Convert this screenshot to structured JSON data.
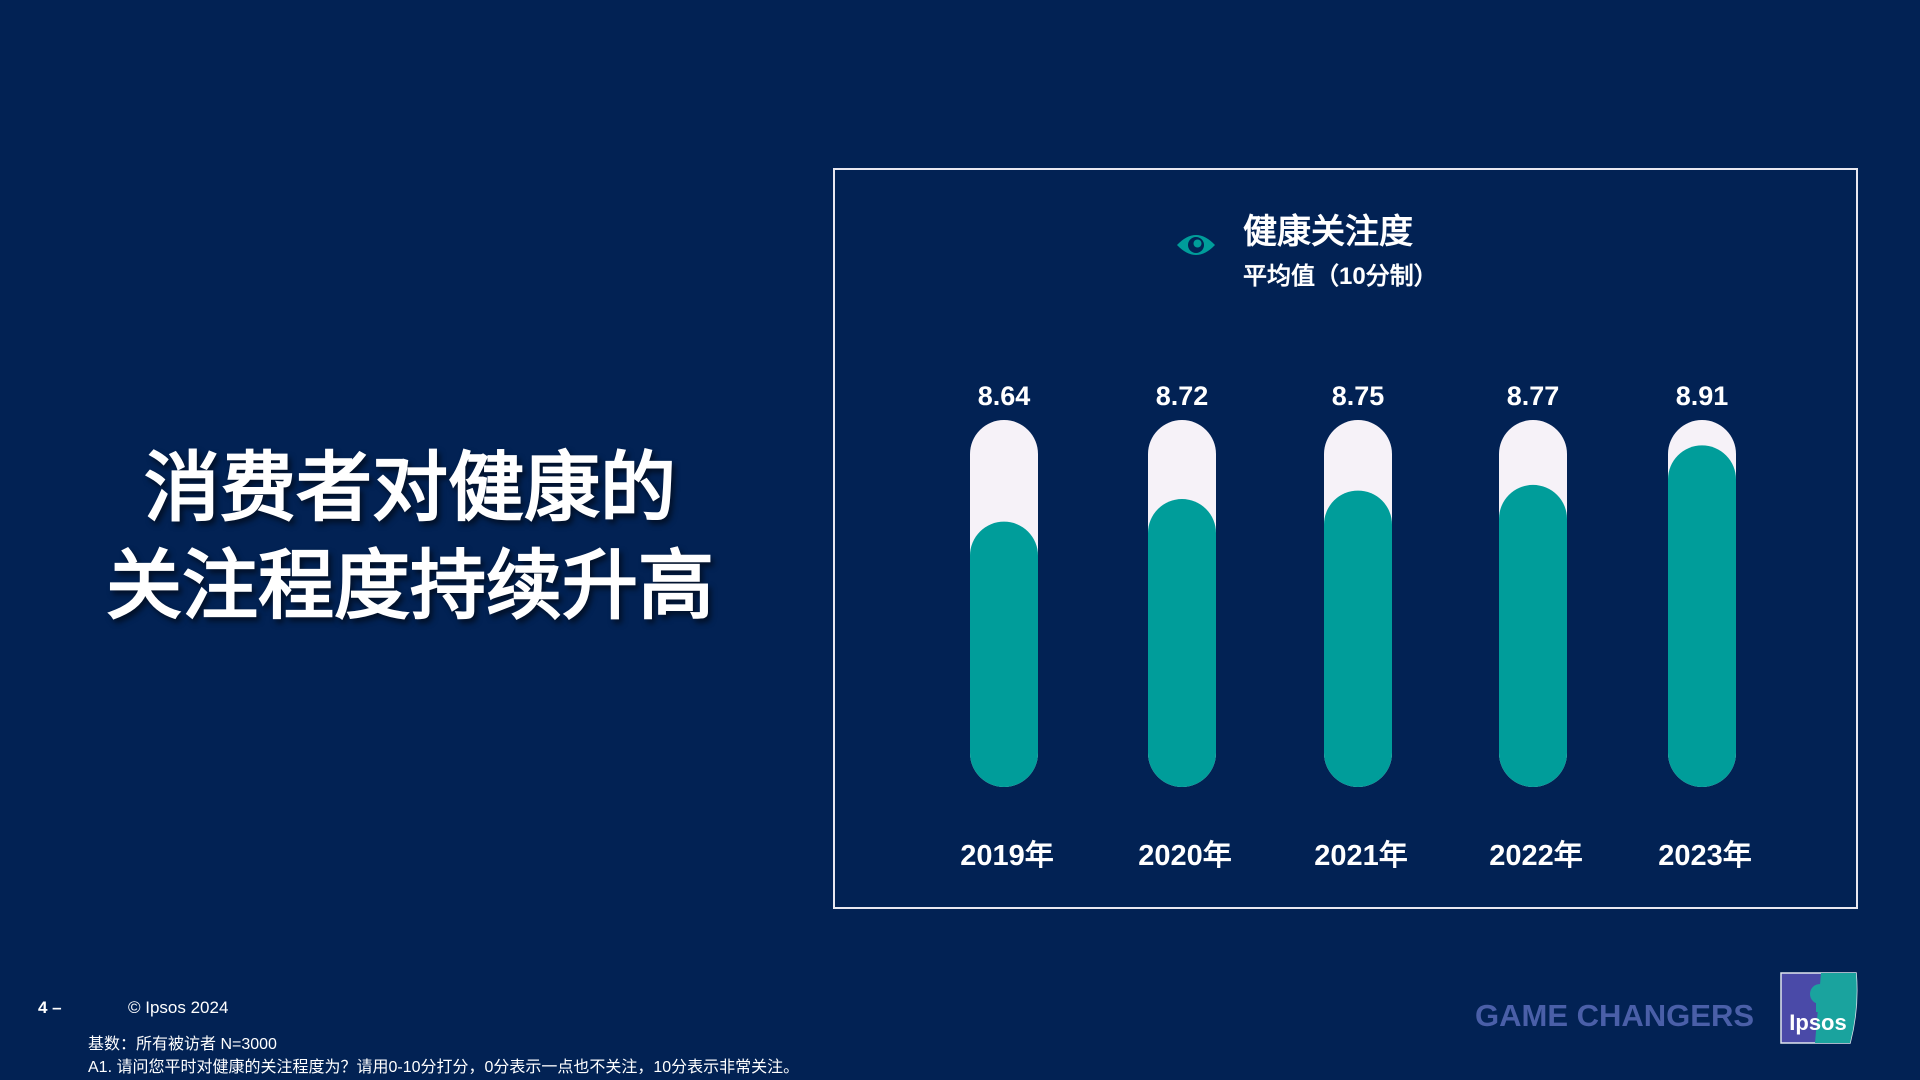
{
  "headline": {
    "line1": "消费者对健康的",
    "line2": "关注程度持续升高"
  },
  "chart_title": "健康关注度",
  "chart_subtitle": "平均值（10分制）",
  "title_icon": "eye-icon",
  "colors": {
    "background": "#022254",
    "fill": "#009d9a",
    "track": "#f6f2f8",
    "text": "#ffffff",
    "tagline": "#4a5fa8"
  },
  "chart_data": {
    "type": "bar",
    "categories": [
      "2019年",
      "2020年",
      "2021年",
      "2022年",
      "2023年"
    ],
    "values": [
      8.64,
      8.72,
      8.75,
      8.77,
      8.91
    ],
    "value_labels": [
      "8.64",
      "8.72",
      "8.75",
      "8.77",
      "8.91"
    ],
    "ylim": [
      7.7,
      9.0
    ],
    "grid": false,
    "title": "健康关注度",
    "subtitle": "平均值（10分制）"
  },
  "footer": {
    "page": "4 –",
    "copyright": "© Ipsos 2024",
    "base": "基数：所有被访者  N=3000",
    "question": "A1. 请问您平时对健康的关注程度为？请用0-10分打分，0分表示一点也不关注，10分表示非常关注。",
    "tagline": "GAME CHANGERS",
    "logo_text": "Ipsos"
  }
}
